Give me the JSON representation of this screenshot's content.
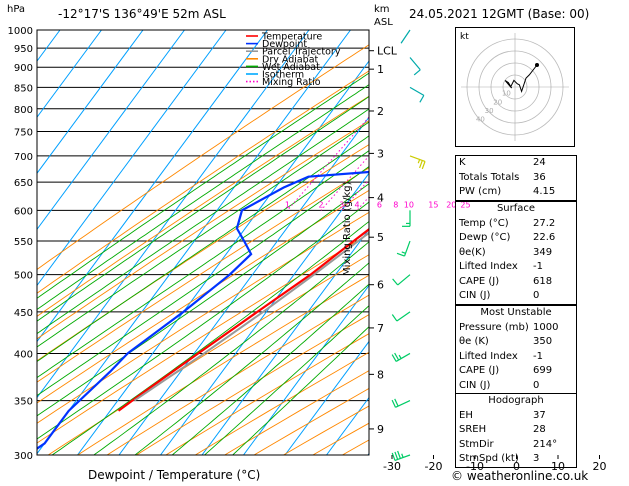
{
  "header": {
    "location": "-12°17'S  136°49'E  52m  ASL",
    "datetime": "24.05.2021  12GMT  (Base: 00)",
    "hpa_label": "hPa",
    "km_label": "km",
    "asl_label": "ASL",
    "mixing_ratio_label": "Mixing Ratio (g/kg)",
    "x_axis_label": "Dewpoint / Temperature (°C)",
    "lcl_label": "LCL",
    "watermark": "© weatheronline.co.uk"
  },
  "legend": [
    {
      "label": "Temperature",
      "color": "#ff0000",
      "dash": "solid"
    },
    {
      "label": "Dewpoint",
      "color": "#0033ff",
      "dash": "solid"
    },
    {
      "label": "Parcel Trajectory",
      "color": "#999999",
      "dash": "solid"
    },
    {
      "label": "Dry Adiabat",
      "color": "#ff8800",
      "dash": "solid"
    },
    {
      "label": "Wet Adiabat",
      "color": "#00aa00",
      "dash": "solid"
    },
    {
      "label": "Isotherm",
      "color": "#00aaff",
      "dash": "solid"
    },
    {
      "label": "Mixing Ratio",
      "color": "#ff00cc",
      "dash": "dotted"
    }
  ],
  "chart_data": {
    "type": "line",
    "title": "",
    "xlabel": "Dewpoint / Temperature (°C)",
    "ylabel": "hPa",
    "xlim": [
      -35,
      40
    ],
    "ylim": [
      1000,
      300
    ],
    "y_scale": "log",
    "x_ticks": [
      -30,
      -20,
      -10,
      0,
      10,
      20,
      30,
      40
    ],
    "pressure_ticks": [
      300,
      350,
      400,
      450,
      500,
      550,
      600,
      650,
      700,
      750,
      800,
      850,
      900,
      950,
      1000
    ],
    "height_ticks": [
      {
        "label": "9",
        "p": 323
      },
      {
        "label": "8",
        "p": 377
      },
      {
        "label": "7",
        "p": 430
      },
      {
        "label": "6",
        "p": 486
      },
      {
        "label": "5",
        "p": 556
      },
      {
        "label": "4",
        "p": 622
      },
      {
        "label": "3",
        "p": 705
      },
      {
        "label": "2",
        "p": 795
      },
      {
        "label": "1",
        "p": 895
      },
      {
        "label": "LCL",
        "p": 943
      }
    ],
    "mixing_ratio_labels": [
      "1",
      "2",
      "3",
      "4",
      "6",
      "8",
      "10",
      "15",
      "20",
      "25"
    ],
    "mixing_ratio_values": [
      1,
      2,
      3,
      4,
      6,
      8,
      10,
      15,
      20,
      25
    ],
    "series": [
      {
        "name": "Temperature",
        "color": "#ff0000",
        "points": [
          [
            1000,
            27.2
          ],
          [
            950,
            23.8
          ],
          [
            925,
            22.6
          ],
          [
            900,
            21.0
          ],
          [
            850,
            18.2
          ],
          [
            800,
            15.0
          ],
          [
            750,
            12.2
          ],
          [
            700,
            9.8
          ],
          [
            650,
            6.2
          ],
          [
            600,
            2.6
          ],
          [
            550,
            -1.6
          ],
          [
            500,
            -6.0
          ],
          [
            450,
            -12.2
          ],
          [
            400,
            -19.0
          ],
          [
            360,
            -25.0
          ],
          [
            340,
            -28.0
          ]
        ]
      },
      {
        "name": "Dewpoint",
        "color": "#0033ff",
        "points": [
          [
            1000,
            22.6
          ],
          [
            950,
            21.0
          ],
          [
            900,
            18.6
          ],
          [
            860,
            16.0
          ],
          [
            840,
            14.2
          ],
          [
            820,
            13.0
          ],
          [
            810,
            12.2
          ],
          [
            800,
            12.6
          ],
          [
            760,
            11.0
          ],
          [
            720,
            9.0
          ],
          [
            710,
            7.5
          ],
          [
            705,
            3.0
          ],
          [
            700,
            1.0
          ],
          [
            685,
            8.0
          ],
          [
            680,
            7.0
          ],
          [
            660,
            -24.0
          ],
          [
            640,
            -28.0
          ],
          [
            600,
            -34.0
          ],
          [
            570,
            -32.0
          ],
          [
            550,
            -28.0
          ],
          [
            530,
            -24.0
          ],
          [
            500,
            -25.5
          ],
          [
            450,
            -30.0
          ],
          [
            400,
            -36.0
          ],
          [
            380,
            -37.0
          ],
          [
            340,
            -40.0
          ],
          [
            310,
            -40.0
          ],
          [
            300,
            -42.0
          ]
        ]
      },
      {
        "name": "Parcel Trajectory",
        "color": "#999999",
        "points": [
          [
            1000,
            27.2
          ],
          [
            943,
            22.0
          ],
          [
            900,
            20.3
          ],
          [
            850,
            18.2
          ],
          [
            800,
            15.8
          ],
          [
            750,
            13.2
          ],
          [
            700,
            10.4
          ],
          [
            650,
            7.2
          ],
          [
            600,
            3.6
          ],
          [
            550,
            -0.5
          ],
          [
            500,
            -5.2
          ],
          [
            450,
            -10.8
          ],
          [
            400,
            -17.6
          ],
          [
            350,
            -26.0
          ]
        ]
      }
    ],
    "wind_barbs": [
      {
        "p": 300,
        "dir": 250,
        "kt": 25
      },
      {
        "p": 350,
        "dir": 245,
        "kt": 20
      },
      {
        "p": 400,
        "dir": 240,
        "kt": 15
      },
      {
        "p": 450,
        "dir": 235,
        "kt": 10
      },
      {
        "p": 500,
        "dir": 230,
        "kt": 10
      },
      {
        "p": 550,
        "dir": 200,
        "kt": 5
      },
      {
        "p": 600,
        "dir": 180,
        "kt": 5
      },
      {
        "p": 700,
        "dir": 110,
        "kt": 15
      },
      {
        "p": 850,
        "dir": 120,
        "kt": 10
      },
      {
        "p": 925,
        "dir": 140,
        "kt": 10
      },
      {
        "p": 1000,
        "dir": 214,
        "kt": 3
      }
    ]
  },
  "indices": {
    "block1": [
      {
        "label": "K",
        "value": "24"
      },
      {
        "label": "Totals Totals",
        "value": "36"
      },
      {
        "label": "PW (cm)",
        "value": "4.15"
      }
    ],
    "surface_title": "Surface",
    "surface": [
      {
        "label": "Temp (°C)",
        "value": "27.2"
      },
      {
        "label": "Dewp (°C)",
        "value": "22.6"
      },
      {
        "label": "θe(K)",
        "value": "349"
      },
      {
        "label": "Lifted Index",
        "value": "-1"
      },
      {
        "label": "CAPE (J)",
        "value": "618"
      },
      {
        "label": "CIN (J)",
        "value": "0"
      }
    ],
    "unstable_title": "Most Unstable",
    "unstable": [
      {
        "label": "Pressure (mb)",
        "value": "1000"
      },
      {
        "label": "θe (K)",
        "value": "350"
      },
      {
        "label": "Lifted Index",
        "value": "-1"
      },
      {
        "label": "CAPE (J)",
        "value": "699"
      },
      {
        "label": "CIN (J)",
        "value": "0"
      }
    ],
    "hodograph_title": "Hodograph",
    "hodograph": [
      {
        "label": "EH",
        "value": "37"
      },
      {
        "label": "SREH",
        "value": "28"
      },
      {
        "label": "StmDir",
        "value": "214°"
      },
      {
        "label": "StmSpd (kt)",
        "value": "3"
      }
    ]
  },
  "hodograph_panel": {
    "label": "kt",
    "ring_labels": [
      "10",
      "20",
      "30",
      "40"
    ],
    "points_kt": [
      [
        -3,
        -1
      ],
      [
        -6,
        4
      ],
      [
        -9,
        6
      ],
      [
        -4,
        0
      ],
      [
        -1,
        6
      ],
      [
        2,
        3
      ],
      [
        4,
        2
      ],
      [
        6,
        -4
      ],
      [
        10,
        8
      ],
      [
        13,
        11
      ],
      [
        20,
        20
      ]
    ]
  }
}
